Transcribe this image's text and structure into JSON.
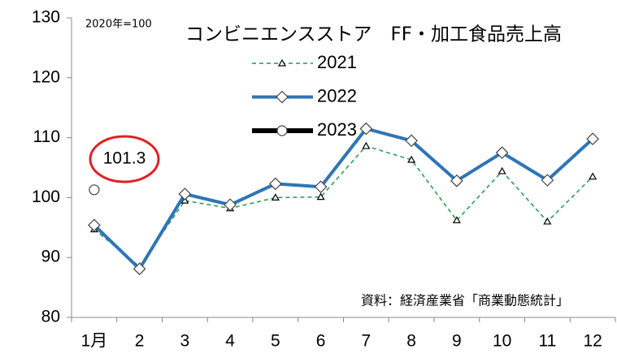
{
  "chart_data": {
    "type": "line",
    "title": "コンビニエンスストア　FF・加工食品売上高",
    "subtitle": "2020年=100",
    "source": "資料：経済産業省「商業動態統計」",
    "categories": [
      "1月",
      "2",
      "3",
      "4",
      "5",
      "6",
      "7",
      "8",
      "9",
      "10",
      "11",
      "12"
    ],
    "series": [
      {
        "name": "2021",
        "color": "#1e9b45",
        "values": [
          94.7,
          88.5,
          99.5,
          98.2,
          100.0,
          100.1,
          108.6,
          106.3,
          96.2,
          104.4,
          96.0,
          103.5
        ]
      },
      {
        "name": "2022",
        "color": "#2e75b6",
        "values": [
          95.4,
          88.1,
          100.6,
          98.8,
          102.3,
          101.8,
          111.5,
          109.5,
          102.8,
          107.5,
          102.9,
          109.8
        ]
      },
      {
        "name": "2023",
        "color": "#000000",
        "values": [
          101.3,
          null,
          null,
          null,
          null,
          null,
          null,
          null,
          null,
          null,
          null,
          null
        ]
      }
    ],
    "ylim": [
      80,
      130
    ],
    "yticks": [
      80,
      90,
      100,
      110,
      120,
      130
    ],
    "grid": false,
    "legend": "top"
  }
}
